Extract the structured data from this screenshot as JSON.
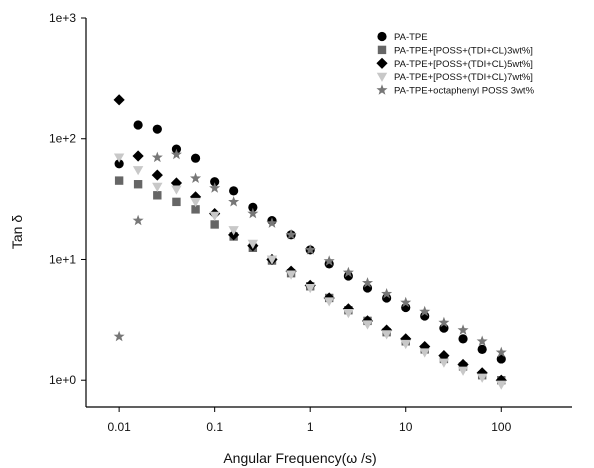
{
  "chart_data": {
    "type": "scatter",
    "xlabel": "Angular Frequency(ω /s)",
    "ylabel": "Tan δ",
    "x_scale": "log",
    "y_scale": "log",
    "xlim": [
      0.0045,
      550
    ],
    "ylim": [
      0.6,
      1000
    ],
    "x_ticks": [
      {
        "value": 0.01,
        "label": "0.01"
      },
      {
        "value": 0.1,
        "label": "0.1"
      },
      {
        "value": 1,
        "label": "1"
      },
      {
        "value": 10,
        "label": "10"
      },
      {
        "value": 100,
        "label": "100"
      }
    ],
    "y_ticks": [
      {
        "value": 1,
        "label": "1e+0"
      },
      {
        "value": 10,
        "label": "1e+1"
      },
      {
        "value": 100,
        "label": "1e+2"
      },
      {
        "value": 1000,
        "label": "1e+3"
      }
    ],
    "grid": false,
    "legend_position": "top-right",
    "x": [
      0.01,
      0.0158,
      0.0251,
      0.0398,
      0.0631,
      0.1,
      0.158,
      0.251,
      0.398,
      0.631,
      1,
      1.58,
      2.51,
      3.98,
      6.31,
      10,
      15.8,
      25.1,
      39.8,
      63.1,
      100
    ],
    "series": [
      {
        "name": "PA-TPE",
        "marker": "circle",
        "color": "#000000",
        "values": [
          62,
          130,
          120,
          82,
          69,
          44,
          37,
          27,
          21,
          16,
          12,
          9.2,
          7.3,
          5.8,
          4.8,
          4.0,
          3.4,
          2.7,
          2.2,
          1.8,
          1.5
        ]
      },
      {
        "name": "PA-TPE+[POSS+(TDI+CL)3wt%]",
        "marker": "square",
        "color": "#666666",
        "values": [
          45,
          42,
          34,
          30,
          26,
          19.5,
          15.5,
          12.5,
          9.8,
          7.7,
          6.0,
          4.8,
          3.8,
          3.1,
          2.5,
          2.1,
          1.8,
          1.5,
          1.3,
          1.1,
          1.0
        ]
      },
      {
        "name": "PA-TPE+[POSS+(TDI+CL)5wt%]",
        "marker": "diamond",
        "color": "#000000",
        "values": [
          210,
          72,
          50,
          43,
          33,
          24,
          16,
          13,
          10,
          8,
          6.1,
          4.8,
          3.9,
          3.1,
          2.6,
          2.2,
          1.9,
          1.6,
          1.35,
          1.15,
          1.0
        ]
      },
      {
        "name": "PA-TPE+[POSS+(TDI+CL)7wt%]",
        "marker": "triangle-down",
        "color": "#c8c8c8",
        "values": [
          70,
          55,
          40,
          38,
          30,
          23,
          17.5,
          13.5,
          10,
          7.5,
          5.8,
          4.5,
          3.6,
          2.9,
          2.4,
          2.0,
          1.7,
          1.4,
          1.2,
          1.05,
          0.92
        ]
      },
      {
        "name": "PA-TPE+octaphenyl POSS 3wt%",
        "marker": "star",
        "color": "#777777",
        "values": [
          2.3,
          21,
          70,
          74,
          47,
          39,
          30,
          24,
          20,
          16,
          12,
          9.7,
          7.8,
          6.4,
          5.2,
          4.4,
          3.7,
          3.0,
          2.6,
          2.1,
          1.7
        ]
      }
    ]
  }
}
